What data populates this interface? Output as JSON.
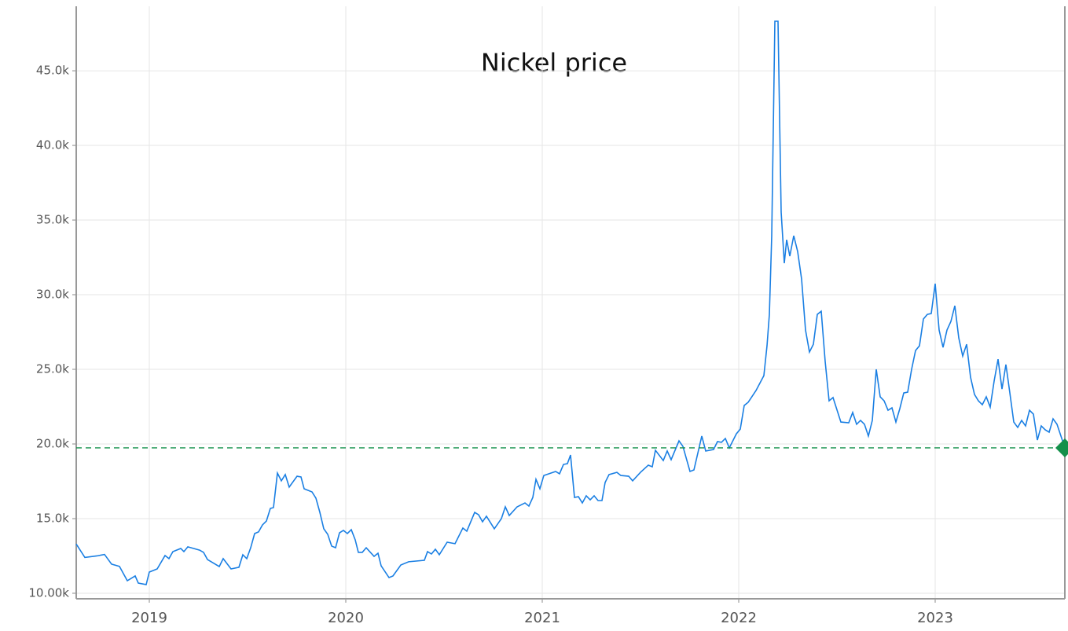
{
  "chart_data": {
    "type": "line",
    "title": "Nickel price",
    "x": [
      2018.628,
      2018.672,
      2018.732,
      2018.772,
      2018.808,
      2018.848,
      2018.888,
      2018.928,
      2018.944,
      2018.984,
      2019.0,
      2019.04,
      2019.08,
      2019.1,
      2019.12,
      2019.16,
      2019.176,
      2019.196,
      2019.256,
      2019.276,
      2019.296,
      2019.356,
      2019.376,
      2019.416,
      2019.456,
      2019.476,
      2019.496,
      2019.516,
      2019.536,
      2019.556,
      2019.576,
      2019.596,
      2019.616,
      2019.632,
      2019.652,
      2019.672,
      2019.692,
      2019.712,
      2019.752,
      2019.772,
      2019.788,
      2019.828,
      2019.848,
      2019.868,
      2019.888,
      2019.908,
      2019.928,
      2019.948,
      2019.968,
      2019.988,
      2020.008,
      2020.028,
      2020.048,
      2020.064,
      2020.084,
      2020.104,
      2020.144,
      2020.164,
      2020.18,
      2020.22,
      2020.24,
      2020.28,
      2020.32,
      2020.4,
      2020.416,
      2020.436,
      2020.456,
      2020.476,
      2020.516,
      2020.556,
      2020.596,
      2020.616,
      2020.656,
      2020.676,
      2020.696,
      2020.716,
      2020.756,
      2020.792,
      2020.812,
      2020.832,
      2020.872,
      2020.912,
      2020.932,
      2020.952,
      2020.968,
      2020.988,
      2021.008,
      2021.068,
      2021.088,
      2021.108,
      2021.128,
      2021.144,
      2021.164,
      2021.184,
      2021.204,
      2021.224,
      2021.244,
      2021.264,
      2021.284,
      2021.304,
      2021.32,
      2021.34,
      2021.38,
      2021.4,
      2021.44,
      2021.46,
      2021.5,
      2021.54,
      2021.56,
      2021.576,
      2021.616,
      2021.636,
      2021.656,
      2021.696,
      2021.716,
      2021.752,
      2021.772,
      2021.812,
      2021.832,
      2021.872,
      2021.892,
      2021.912,
      2021.932,
      2021.952,
      2021.988,
      2022.008,
      2022.028,
      2022.048,
      2022.088,
      2022.128,
      2022.144,
      2022.156,
      2022.168,
      2022.184,
      2022.2,
      2022.216,
      2022.232,
      2022.244,
      2022.26,
      2022.28,
      2022.3,
      2022.32,
      2022.34,
      2022.36,
      2022.38,
      2022.4,
      2022.42,
      2022.44,
      2022.46,
      2022.48,
      2022.52,
      2022.56,
      2022.58,
      2022.6,
      2022.62,
      2022.64,
      2022.66,
      2022.68,
      2022.7,
      2022.72,
      2022.74,
      2022.76,
      2022.78,
      2022.8,
      2022.82,
      2022.84,
      2022.86,
      2022.88,
      2022.9,
      2022.92,
      2022.94,
      2022.96,
      2022.98,
      2023.0,
      2023.02,
      2023.04,
      2023.06,
      2023.08,
      2023.1,
      2023.12,
      2023.14,
      2023.16,
      2023.18,
      2023.2,
      2023.22,
      2023.24,
      2023.26,
      2023.28,
      2023.3,
      2023.32,
      2023.34,
      2023.36,
      2023.38,
      2023.4,
      2023.42,
      2023.44,
      2023.46,
      2023.48,
      2023.5,
      2023.52,
      2023.54,
      2023.56,
      2023.58,
      2023.6,
      2023.62,
      2023.64,
      2023.66
    ],
    "series": [
      {
        "name": "Nickel",
        "color": "#1a7fe3",
        "values": [
          13300,
          12400,
          12500,
          12600,
          11950,
          11800,
          10840,
          11160,
          10680,
          10580,
          11420,
          11630,
          12530,
          12320,
          12790,
          13000,
          12790,
          13110,
          12890,
          12740,
          12260,
          11790,
          12320,
          11630,
          11740,
          12580,
          12320,
          13050,
          14000,
          14110,
          14580,
          14840,
          15680,
          15740,
          18050,
          17530,
          17950,
          17110,
          17840,
          17790,
          17000,
          16790,
          16370,
          15420,
          14320,
          13950,
          13160,
          13050,
          14050,
          14210,
          14000,
          14260,
          13580,
          12740,
          12740,
          13050,
          12470,
          12680,
          11840,
          11050,
          11160,
          11890,
          12110,
          12210,
          12790,
          12630,
          12950,
          12580,
          13420,
          13320,
          14370,
          14160,
          15420,
          15260,
          14790,
          15160,
          14320,
          15000,
          15790,
          15210,
          15790,
          16050,
          15840,
          16420,
          17630,
          17000,
          17890,
          18160,
          18000,
          18630,
          18680,
          19260,
          16420,
          16470,
          16050,
          16530,
          16260,
          16530,
          16210,
          16210,
          17420,
          17950,
          18100,
          17890,
          17840,
          17530,
          18100,
          18580,
          18470,
          19580,
          18890,
          19530,
          18950,
          20210,
          19840,
          18160,
          18260,
          20530,
          19530,
          19630,
          20160,
          20110,
          20370,
          19740,
          20680,
          21000,
          22580,
          22790,
          23580,
          24580,
          26580,
          28680,
          33950,
          48320,
          48320,
          35530,
          32110,
          33680,
          32580,
          33950,
          32890,
          31050,
          27630,
          26160,
          26680,
          28680,
          28890,
          25530,
          22890,
          23110,
          21470,
          21420,
          22110,
          21320,
          21580,
          21320,
          20530,
          21580,
          25000,
          23160,
          22890,
          22260,
          22420,
          21470,
          22370,
          23420,
          23470,
          25000,
          26260,
          26580,
          28370,
          28680,
          28740,
          30740,
          27630,
          26470,
          27630,
          28210,
          29260,
          27110,
          25890,
          26680,
          24470,
          23320,
          22890,
          22630,
          23160,
          22470,
          24210,
          25680,
          23680,
          25320,
          23420,
          21470,
          21110,
          21580,
          21210,
          22260,
          22000,
          20260,
          21210,
          20950,
          20790,
          21680,
          21320,
          20530,
          19740
        ]
      }
    ],
    "current_value": 19740,
    "current_color": "#13904a",
    "xlim": [
      2018.628,
      2023.66
    ],
    "xticks": [
      2019,
      2020,
      2021,
      2022,
      2023
    ],
    "ylim": [
      9630,
      49320
    ],
    "yticks": [
      {
        "value": 10000,
        "label": "10.00k"
      },
      {
        "value": 15000,
        "label": "15.0k"
      },
      {
        "value": 20000,
        "label": "20.0k"
      },
      {
        "value": 25000,
        "label": "25.0k"
      },
      {
        "value": 30000,
        "label": "30.0k"
      },
      {
        "value": 35000,
        "label": "35.0k"
      },
      {
        "value": 40000,
        "label": "40.0k"
      },
      {
        "value": 45000,
        "label": "45.0k"
      }
    ],
    "grid": true
  }
}
